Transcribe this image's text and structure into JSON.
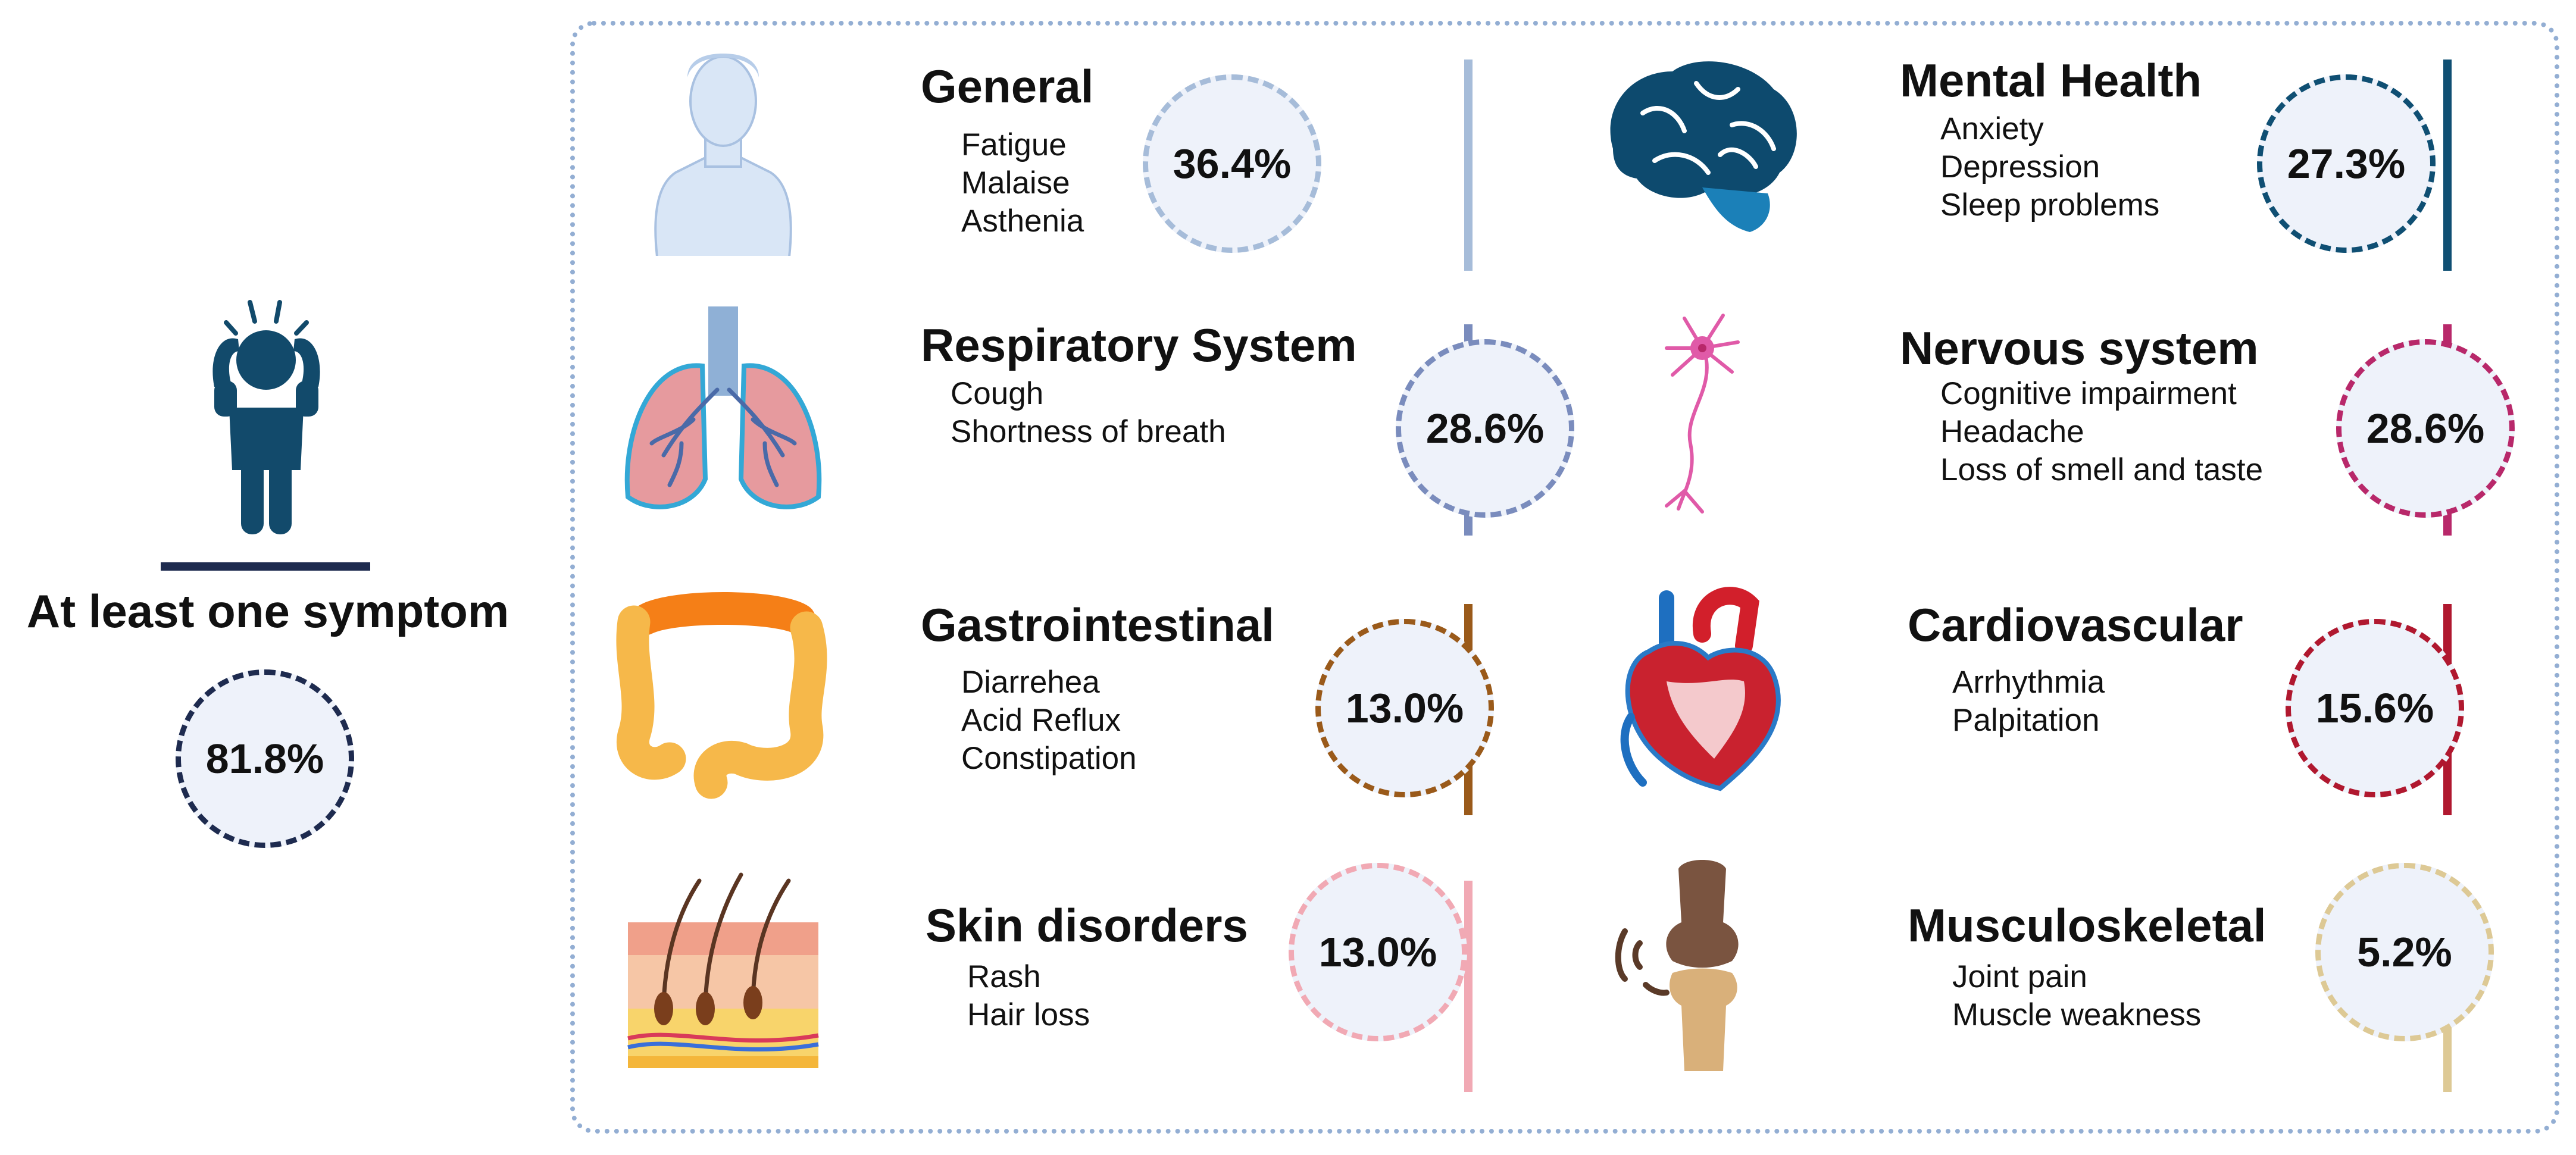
{
  "summary": {
    "label": "At least one symptom",
    "percent": "81.8%",
    "color": "#1e2b4f",
    "icon": "distressed-person-icon"
  },
  "categories": [
    {
      "id": "general",
      "title": "General",
      "symptoms": [
        "Fatigue",
        "Malaise",
        "Asthenia"
      ],
      "percent": "36.4%",
      "color": "#a6bcd9",
      "icon": "human-body-icon"
    },
    {
      "id": "mental-health",
      "title": "Mental Health",
      "symptoms": [
        "Anxiety",
        "Depression",
        "Sleep problems"
      ],
      "percent": "27.3%",
      "color": "#0f4f73",
      "icon": "brain-icon"
    },
    {
      "id": "respiratory",
      "title": "Respiratory System",
      "symptoms": [
        "Cough",
        "Shortness of breath"
      ],
      "percent": "28.6%",
      "color": "#7a8cbd",
      "icon": "lungs-icon"
    },
    {
      "id": "nervous",
      "title": "Nervous system",
      "symptoms": [
        "Cognitive impairment",
        "Headache",
        "Loss of smell and taste"
      ],
      "percent": "28.6%",
      "color": "#b8286a",
      "icon": "neuron-icon"
    },
    {
      "id": "gastrointestinal",
      "title": "Gastrointestinal",
      "symptoms": [
        "Diarrehea",
        "Acid Reflux",
        "Constipation"
      ],
      "percent": "13.0%",
      "color": "#9a5a1a",
      "icon": "intestine-icon"
    },
    {
      "id": "cardiovascular",
      "title": "Cardiovascular",
      "symptoms": [
        "Arrhythmia",
        "Palpitation"
      ],
      "percent": "15.6%",
      "color": "#b0182f",
      "icon": "heart-icon"
    },
    {
      "id": "skin",
      "title": "Skin disorders",
      "symptoms": [
        "Rash",
        "Hair loss"
      ],
      "percent": "13.0%",
      "color": "#f1a9b4",
      "icon": "skin-layers-icon"
    },
    {
      "id": "musculoskeletal",
      "title": "Musculoskeletal",
      "symptoms": [
        "Joint pain",
        "Muscle weakness"
      ],
      "percent": "5.2%",
      "color": "#ddc995",
      "icon": "knee-joint-icon"
    }
  ]
}
